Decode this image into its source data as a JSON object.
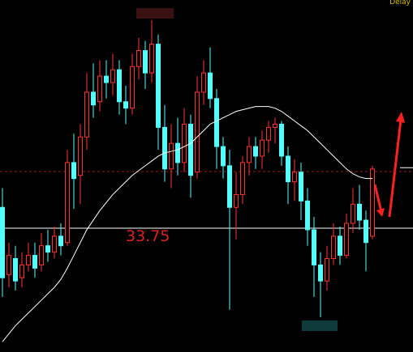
{
  "chart_data": {
    "type": "candlestick",
    "status": "Delay",
    "ylim": [
      29.88,
      40.88
    ],
    "up_color": "#ff3232",
    "down_color": "#54fcfc",
    "open": [
      34.4,
      32.3,
      32.8,
      32.2,
      32.6,
      32.9,
      32.6,
      33.2,
      33.0,
      33.5,
      33.3,
      35.8,
      35.4,
      36.6,
      38.0,
      37.7,
      38.5,
      38.3,
      38.7,
      37.7,
      37.5,
      38.8,
      39.3,
      38.6,
      39.5,
      36.9,
      35.6,
      36.4,
      35.8,
      37.0,
      35.5,
      38.0,
      38.6,
      37.8,
      36.3,
      35.7,
      34.4,
      34.8,
      35.8,
      36.3,
      36.0,
      36.5,
      36.9,
      37.0,
      36.0,
      35.2,
      35.5,
      34.6,
      33.7,
      32.6,
      32.1,
      32.8,
      33.5,
      32.9,
      33.9,
      34.5,
      34.0,
      33.5
    ],
    "high": [
      35.0,
      33.3,
      33.2,
      33.0,
      33.3,
      33.3,
      33.6,
      33.7,
      33.8,
      33.9,
      36.2,
      36.7,
      37.0,
      38.6,
      38.9,
      39.0,
      39.0,
      39.2,
      39.0,
      38.2,
      39.2,
      39.7,
      39.6,
      40.25,
      39.8,
      37.6,
      37.0,
      37.2,
      37.5,
      37.3,
      38.5,
      39.0,
      39.4,
      38.1,
      36.6,
      36.2,
      35.5,
      36.0,
      36.6,
      36.6,
      36.8,
      37.1,
      37.2,
      37.1,
      36.3,
      35.9,
      35.8,
      35.0,
      34.1,
      33.0,
      33.2,
      33.9,
      33.8,
      34.2,
      35.0,
      35.1,
      34.3,
      35.7
    ],
    "low": [
      31.6,
      31.9,
      31.8,
      31.9,
      32.4,
      32.2,
      32.4,
      32.7,
      32.8,
      32.9,
      33.2,
      34.35,
      34.5,
      36.2,
      37.2,
      37.4,
      37.8,
      37.9,
      37.3,
      37.0,
      37.3,
      38.4,
      38.1,
      38.3,
      36.2,
      35.2,
      35.0,
      35.4,
      35.5,
      34.7,
      35.3,
      37.6,
      37.5,
      35.6,
      35.3,
      31.2,
      33.4,
      34.5,
      35.4,
      35.6,
      35.6,
      36.1,
      36.4,
      35.7,
      34.5,
      34.6,
      34.0,
      33.2,
      31.6,
      30.97,
      31.8,
      32.6,
      32.6,
      32.8,
      33.6,
      33.7,
      32.4,
      33.4
    ],
    "close": [
      32.2,
      32.9,
      32.1,
      32.6,
      32.9,
      32.5,
      33.2,
      33.0,
      33.5,
      33.2,
      35.8,
      35.3,
      36.6,
      38.0,
      37.6,
      38.5,
      38.3,
      38.7,
      37.7,
      37.5,
      38.8,
      39.3,
      38.6,
      39.5,
      36.9,
      35.6,
      36.4,
      35.8,
      37.0,
      35.4,
      38.0,
      38.6,
      37.8,
      36.3,
      35.7,
      34.4,
      34.8,
      35.8,
      36.3,
      36.0,
      36.5,
      36.9,
      37.0,
      36.0,
      35.2,
      35.5,
      34.6,
      33.7,
      32.6,
      32.1,
      32.8,
      33.5,
      32.9,
      33.9,
      34.5,
      34.0,
      33.3,
      35.6
    ],
    "moving_average": {
      "color": "#ffffff",
      "values": [
        30.2,
        30.45,
        30.7,
        30.9,
        31.1,
        31.3,
        31.5,
        31.7,
        31.9,
        32.15,
        32.5,
        32.9,
        33.3,
        33.7,
        34.0,
        34.3,
        34.55,
        34.8,
        35.0,
        35.2,
        35.4,
        35.55,
        35.7,
        35.85,
        36.0,
        36.1,
        36.15,
        36.2,
        36.3,
        36.4,
        36.6,
        36.8,
        37.0,
        37.1,
        37.2,
        37.3,
        37.4,
        37.45,
        37.5,
        37.55,
        37.55,
        37.55,
        37.5,
        37.4,
        37.25,
        37.1,
        36.95,
        36.8,
        36.6,
        36.4,
        36.2,
        36.0,
        35.8,
        35.6,
        35.45,
        35.35,
        35.3,
        35.3
      ]
    },
    "level_line": {
      "value": 33.75,
      "color": "#ffffff",
      "label_color": "#e02020"
    },
    "dashed_line": {
      "value": 35.52,
      "color": "#a01818"
    },
    "last_mark": 35.64
  }
}
